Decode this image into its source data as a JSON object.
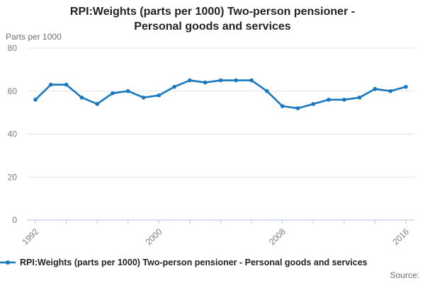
{
  "title": {
    "lines": [
      "RPI:Weights (parts per 1000) Two-person pensioner -",
      "Personal goods and services"
    ]
  },
  "y_axis_unit": "Parts per 1000",
  "legend": {
    "label": "RPI:Weights (parts per 1000) Two-person pensioner - Personal goods and services"
  },
  "source_label": "Source:",
  "colors": {
    "line": "#1878bf",
    "marker": "#1878bf",
    "grid": "#e4e4e4",
    "axis": "#c2d1e0",
    "tick_text": "#7b7b7b",
    "title_text": "#222222",
    "muted_text": "#6f6f6f"
  },
  "chart_data": {
    "type": "line",
    "title": "RPI:Weights (parts per 1000) Two-person pensioner - Personal goods and services",
    "xlabel": "",
    "ylabel": "Parts per 1000",
    "x": [
      1992,
      1993,
      1994,
      1995,
      1996,
      1997,
      1998,
      1999,
      2000,
      2001,
      2002,
      2003,
      2004,
      2005,
      2006,
      2007,
      2008,
      2009,
      2010,
      2011,
      2012,
      2013,
      2014,
      2015,
      2016
    ],
    "series": [
      {
        "name": "RPI:Weights (parts per 1000) Two-person pensioner - Personal goods and services",
        "values": [
          56,
          63,
          63,
          57,
          54,
          59,
          60,
          57,
          58,
          62,
          65,
          64,
          65,
          65,
          65,
          60,
          53,
          52,
          54,
          56,
          56,
          57,
          61,
          60,
          62
        ]
      }
    ],
    "ylim": [
      0,
      80
    ],
    "y_ticks": [
      0,
      20,
      40,
      60,
      80
    ],
    "x_tick_labels": [
      "1992",
      "2000",
      "2008",
      "2016"
    ],
    "x_minor_tick_step_years": 2,
    "grid": true,
    "legend_position": "bottom",
    "markers": true
  }
}
